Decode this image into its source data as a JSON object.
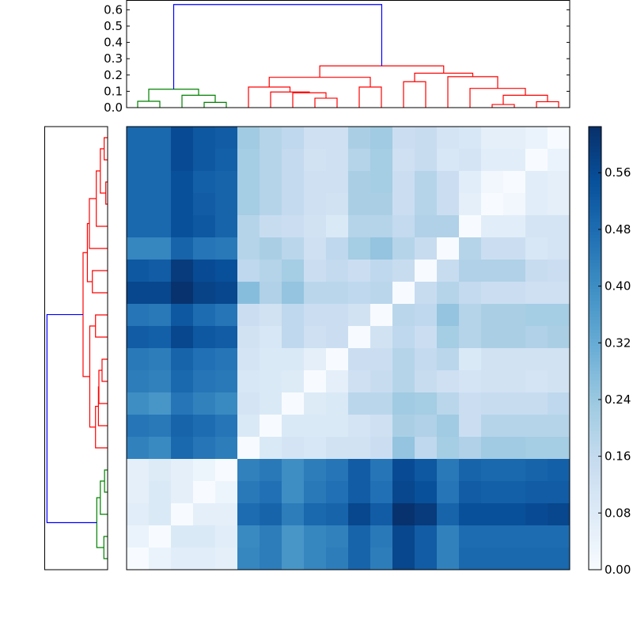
{
  "chart_data": [
    {
      "type": "heatmap",
      "colormap": "Blues",
      "vmin": 0.0,
      "vmax": 0.625,
      "colorbar_ticks": [
        "0.00",
        "0.08",
        "0.16",
        "0.24",
        "0.32",
        "0.40",
        "0.48",
        "0.56"
      ],
      "colorbar_tick_values": [
        0,
        0.08,
        0.16,
        0.24,
        0.32,
        0.4,
        0.48,
        0.56
      ],
      "values": [
        [
          0.49,
          0.49,
          0.56,
          0.53,
          0.52,
          0.23,
          0.19,
          0.17,
          0.13,
          0.13,
          0.21,
          0.23,
          0.14,
          0.15,
          0.11,
          0.1,
          0.06,
          0.06,
          0.04,
          0.0
        ],
        [
          0.49,
          0.49,
          0.56,
          0.53,
          0.51,
          0.22,
          0.19,
          0.16,
          0.12,
          0.13,
          0.19,
          0.22,
          0.13,
          0.15,
          0.1,
          0.11,
          0.07,
          0.07,
          0.0,
          0.04
        ],
        [
          0.49,
          0.49,
          0.55,
          0.51,
          0.5,
          0.22,
          0.19,
          0.16,
          0.13,
          0.13,
          0.21,
          0.22,
          0.14,
          0.19,
          0.14,
          0.07,
          0.02,
          0.0,
          0.07,
          0.06
        ],
        [
          0.49,
          0.49,
          0.55,
          0.52,
          0.5,
          0.22,
          0.19,
          0.16,
          0.13,
          0.12,
          0.21,
          0.21,
          0.14,
          0.19,
          0.14,
          0.06,
          0.0,
          0.02,
          0.07,
          0.06
        ],
        [
          0.49,
          0.49,
          0.55,
          0.53,
          0.5,
          0.19,
          0.15,
          0.14,
          0.12,
          0.09,
          0.19,
          0.19,
          0.16,
          0.2,
          0.2,
          0.0,
          0.07,
          0.07,
          0.11,
          0.11
        ],
        [
          0.42,
          0.42,
          0.5,
          0.46,
          0.45,
          0.19,
          0.21,
          0.18,
          0.13,
          0.17,
          0.22,
          0.25,
          0.19,
          0.15,
          0.0,
          0.19,
          0.14,
          0.14,
          0.1,
          0.11
        ],
        [
          0.53,
          0.52,
          0.6,
          0.56,
          0.55,
          0.17,
          0.19,
          0.22,
          0.14,
          0.16,
          0.14,
          0.17,
          0.15,
          0.0,
          0.15,
          0.2,
          0.2,
          0.2,
          0.15,
          0.14
        ],
        [
          0.57,
          0.57,
          0.62,
          0.58,
          0.57,
          0.27,
          0.2,
          0.25,
          0.18,
          0.18,
          0.17,
          0.18,
          0.0,
          0.15,
          0.19,
          0.16,
          0.14,
          0.14,
          0.13,
          0.13
        ],
        [
          0.46,
          0.45,
          0.53,
          0.48,
          0.46,
          0.14,
          0.12,
          0.17,
          0.14,
          0.14,
          0.12,
          0.0,
          0.18,
          0.17,
          0.25,
          0.19,
          0.21,
          0.21,
          0.22,
          0.22
        ],
        [
          0.52,
          0.51,
          0.57,
          0.53,
          0.52,
          0.12,
          0.1,
          0.17,
          0.13,
          0.14,
          0.0,
          0.12,
          0.17,
          0.14,
          0.22,
          0.19,
          0.21,
          0.21,
          0.2,
          0.21
        ],
        [
          0.45,
          0.44,
          0.5,
          0.47,
          0.46,
          0.11,
          0.09,
          0.09,
          0.06,
          0.0,
          0.14,
          0.14,
          0.19,
          0.16,
          0.18,
          0.09,
          0.12,
          0.12,
          0.12,
          0.12
        ],
        [
          0.44,
          0.43,
          0.49,
          0.46,
          0.45,
          0.1,
          0.09,
          0.08,
          0.0,
          0.06,
          0.13,
          0.15,
          0.19,
          0.15,
          0.13,
          0.11,
          0.12,
          0.12,
          0.11,
          0.12
        ],
        [
          0.4,
          0.38,
          0.46,
          0.43,
          0.41,
          0.11,
          0.09,
          0.0,
          0.08,
          0.09,
          0.18,
          0.18,
          0.23,
          0.22,
          0.18,
          0.14,
          0.15,
          0.15,
          0.15,
          0.17
        ],
        [
          0.46,
          0.45,
          0.5,
          0.48,
          0.46,
          0.09,
          0.0,
          0.09,
          0.09,
          0.09,
          0.11,
          0.13,
          0.21,
          0.2,
          0.23,
          0.14,
          0.19,
          0.19,
          0.19,
          0.19
        ],
        [
          0.43,
          0.41,
          0.49,
          0.46,
          0.44,
          0.0,
          0.09,
          0.11,
          0.1,
          0.12,
          0.12,
          0.14,
          0.25,
          0.17,
          0.22,
          0.2,
          0.23,
          0.23,
          0.22,
          0.22
        ],
        [
          0.06,
          0.08,
          0.06,
          0.03,
          0.0,
          0.43,
          0.45,
          0.4,
          0.44,
          0.46,
          0.52,
          0.46,
          0.56,
          0.53,
          0.45,
          0.5,
          0.49,
          0.49,
          0.5,
          0.51
        ],
        [
          0.06,
          0.09,
          0.06,
          0.0,
          0.03,
          0.45,
          0.47,
          0.4,
          0.45,
          0.47,
          0.52,
          0.47,
          0.57,
          0.55,
          0.46,
          0.52,
          0.51,
          0.51,
          0.52,
          0.52
        ],
        [
          0.07,
          0.09,
          0.0,
          0.06,
          0.06,
          0.48,
          0.5,
          0.44,
          0.49,
          0.5,
          0.57,
          0.52,
          0.62,
          0.6,
          0.5,
          0.55,
          0.55,
          0.55,
          0.56,
          0.57
        ],
        [
          0.04,
          0.0,
          0.09,
          0.09,
          0.07,
          0.41,
          0.44,
          0.38,
          0.42,
          0.43,
          0.5,
          0.45,
          0.57,
          0.52,
          0.43,
          0.48,
          0.48,
          0.48,
          0.48,
          0.48
        ],
        [
          0.0,
          0.04,
          0.07,
          0.07,
          0.06,
          0.42,
          0.44,
          0.38,
          0.42,
          0.44,
          0.5,
          0.44,
          0.57,
          0.52,
          0.43,
          0.49,
          0.49,
          0.49,
          0.49,
          0.49
        ]
      ]
    },
    {
      "type": "dendrogram",
      "orientation": "top",
      "ylim": [
        0,
        0.66
      ],
      "yticks": [
        "0.0",
        "0.1",
        "0.2",
        "0.3",
        "0.4",
        "0.5",
        "0.6"
      ],
      "ytick_values": [
        0,
        0.1,
        0.2,
        0.3,
        0.4,
        0.5,
        0.6
      ],
      "n_leaves": 20,
      "colors": {
        "green": "#008000",
        "red": "#ff0000",
        "blue": "#0000ff"
      },
      "merges": [
        {
          "id": 20,
          "left": 0,
          "right": 1,
          "height": 0.039,
          "color": "green"
        },
        {
          "id": 21,
          "left": 3,
          "right": 4,
          "height": 0.032,
          "color": "green"
        },
        {
          "id": 22,
          "left": 2,
          "right": 21,
          "height": 0.076,
          "color": "green"
        },
        {
          "id": 23,
          "left": 20,
          "right": 22,
          "height": 0.113,
          "color": "green"
        },
        {
          "id": 24,
          "left": 8,
          "right": 9,
          "height": 0.058,
          "color": "red"
        },
        {
          "id": 25,
          "left": 7,
          "right": 24,
          "height": 0.091,
          "color": "red"
        },
        {
          "id": 26,
          "left": 6,
          "right": 25,
          "height": 0.096,
          "color": "red"
        },
        {
          "id": 27,
          "left": 5,
          "right": 26,
          "height": 0.126,
          "color": "red"
        },
        {
          "id": 28,
          "left": 10,
          "right": 11,
          "height": 0.126,
          "color": "red"
        },
        {
          "id": 29,
          "left": 27,
          "right": 28,
          "height": 0.186,
          "color": "red"
        },
        {
          "id": 30,
          "left": 12,
          "right": 13,
          "height": 0.159,
          "color": "red"
        },
        {
          "id": 31,
          "left": 16,
          "right": 17,
          "height": 0.019,
          "color": "red"
        },
        {
          "id": 32,
          "left": 18,
          "right": 19,
          "height": 0.036,
          "color": "red"
        },
        {
          "id": 33,
          "left": 31,
          "right": 32,
          "height": 0.076,
          "color": "red"
        },
        {
          "id": 34,
          "left": 15,
          "right": 33,
          "height": 0.118,
          "color": "red"
        },
        {
          "id": 35,
          "left": 14,
          "right": 34,
          "height": 0.19,
          "color": "red"
        },
        {
          "id": 36,
          "left": 30,
          "right": 35,
          "height": 0.211,
          "color": "red"
        },
        {
          "id": 37,
          "left": 29,
          "right": 36,
          "height": 0.256,
          "color": "red"
        },
        {
          "id": 38,
          "left": 23,
          "right": 37,
          "height": 0.632,
          "color": "blue"
        }
      ]
    },
    {
      "type": "dendrogram",
      "orientation": "left",
      "mirror_of": "top"
    }
  ]
}
